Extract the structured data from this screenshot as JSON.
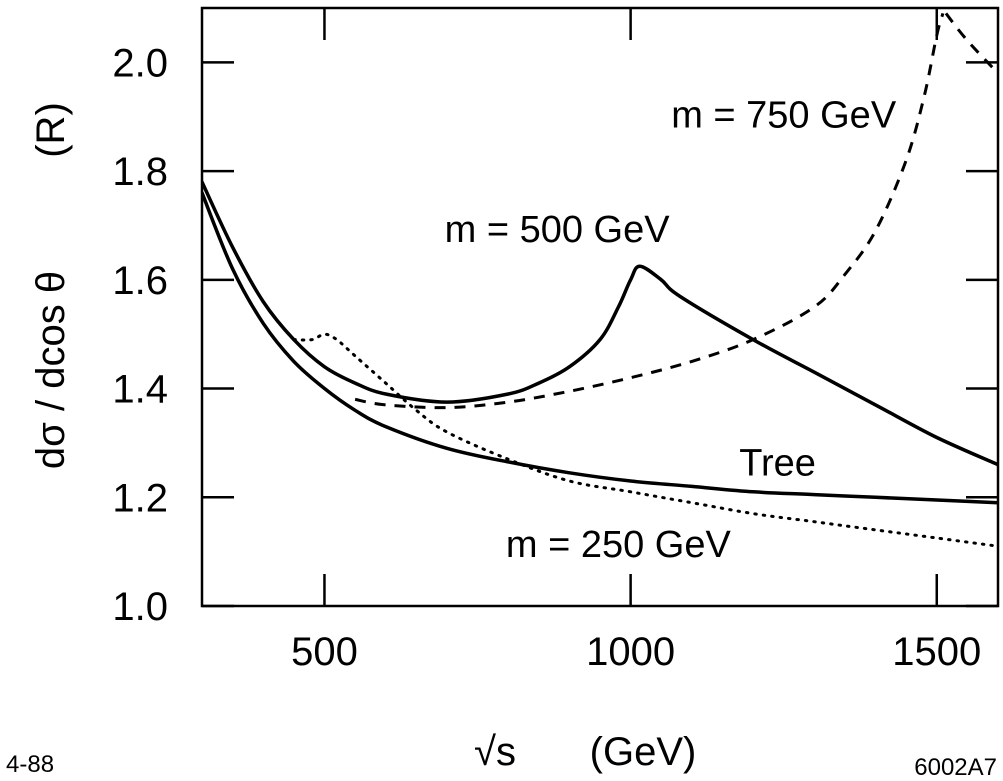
{
  "chart_data": {
    "type": "line",
    "title": "",
    "xlabel": "√s (GeV)",
    "xlabel_parts": {
      "root": "√s",
      "unit": "(GeV)"
    },
    "ylabel": "dσ / dcos θ (R)",
    "ylabel_parts": {
      "quantity": "dσ / dcos θ",
      "unit": "(R)"
    },
    "xlim": [
      300,
      1600
    ],
    "ylim": [
      1.0,
      2.1
    ],
    "xticks": [
      500,
      1000,
      1500
    ],
    "xtick_labels": [
      "500",
      "1000",
      "1500"
    ],
    "yticks": [
      1.0,
      1.2,
      1.4,
      1.6,
      1.8,
      2.0
    ],
    "ytick_labels": [
      "1.0",
      "1.2",
      "1.4",
      "1.6",
      "1.8",
      "2.0"
    ],
    "grid": false,
    "series": [
      {
        "name": "Tree",
        "style": "solid",
        "x": [
          300,
          350,
          400,
          450,
          500,
          550,
          600,
          700,
          800,
          900,
          1000,
          1100,
          1200,
          1300,
          1400,
          1500,
          1600
        ],
        "y": [
          1.76,
          1.62,
          1.52,
          1.45,
          1.4,
          1.36,
          1.33,
          1.29,
          1.265,
          1.245,
          1.23,
          1.22,
          1.21,
          1.205,
          1.2,
          1.195,
          1.19
        ]
      },
      {
        "name": "m = 500 GeV",
        "style": "solid",
        "x": [
          300,
          350,
          400,
          450,
          500,
          550,
          600,
          700,
          800,
          850,
          900,
          950,
          980,
          1000,
          1015,
          1050,
          1080,
          1200,
          1300,
          1400,
          1500,
          1600
        ],
        "y": [
          1.78,
          1.66,
          1.56,
          1.49,
          1.44,
          1.41,
          1.39,
          1.375,
          1.39,
          1.41,
          1.44,
          1.49,
          1.55,
          1.6,
          1.625,
          1.6,
          1.57,
          1.49,
          1.43,
          1.37,
          1.31,
          1.26
        ]
      },
      {
        "name": "m = 250 GeV",
        "style": "dotted",
        "x": [
          450,
          480,
          500,
          520,
          550,
          600,
          650,
          700,
          800,
          900,
          1000,
          1100,
          1200,
          1300,
          1400,
          1500,
          1600
        ],
        "y": [
          1.49,
          1.49,
          1.5,
          1.49,
          1.46,
          1.41,
          1.36,
          1.32,
          1.27,
          1.23,
          1.21,
          1.19,
          1.17,
          1.155,
          1.14,
          1.125,
          1.11
        ]
      },
      {
        "name": "m = 750 GeV",
        "style": "dashed",
        "x": [
          550,
          600,
          700,
          800,
          900,
          1000,
          1100,
          1200,
          1300,
          1350,
          1400,
          1450,
          1480,
          1500,
          1510
        ],
        "y": [
          1.38,
          1.37,
          1.365,
          1.375,
          1.395,
          1.42,
          1.45,
          1.49,
          1.55,
          1.61,
          1.69,
          1.82,
          1.94,
          2.05,
          2.09
        ]
      },
      {
        "name": "",
        "style": "dashed",
        "x": [
          1515,
          1550,
          1600
        ],
        "y": [
          2.09,
          2.04,
          1.98
        ]
      }
    ],
    "annotations": [
      {
        "text": "m = 750 GeV",
        "series": "m = 750 GeV",
        "x": 1250,
        "y": 1.88
      },
      {
        "text": "m = 500 GeV",
        "series": "m = 500 GeV",
        "x": 880,
        "y": 1.67
      },
      {
        "text": "Tree",
        "series": "Tree",
        "x": 1240,
        "y": 1.24
      },
      {
        "text": "m = 250 GeV",
        "series": "m = 250 GeV",
        "x": 980,
        "y": 1.09
      }
    ]
  },
  "footer": {
    "left_code": "4-88",
    "right_code": "6002A7"
  }
}
